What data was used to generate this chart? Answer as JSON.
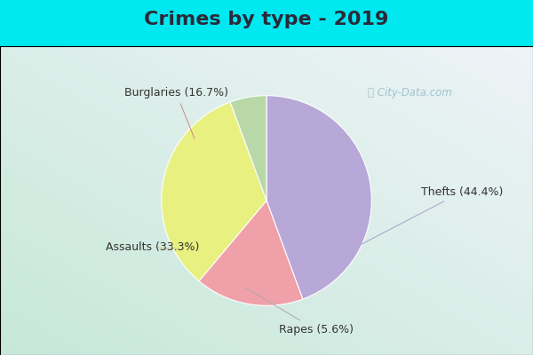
{
  "title": "Crimes by type - 2019",
  "slices": [
    {
      "label": "Thefts (44.4%)",
      "value": 44.4,
      "color": "#b8a8d8"
    },
    {
      "label": "Burglaries (16.7%)",
      "value": 16.7,
      "color": "#f0a0a8"
    },
    {
      "label": "Assaults (33.3%)",
      "value": 33.3,
      "color": "#e8f080"
    },
    {
      "label": "Rapes (5.6%)",
      "value": 5.6,
      "color": "#b8d8a8"
    }
  ],
  "bg_cyan": "#00e8f0",
  "bg_main": "#c8e8d8",
  "title_fontsize": 16,
  "label_fontsize": 9,
  "watermark": "ⓘ City-Data.com",
  "title_color": "#2a2a3a",
  "label_color": "#333333",
  "watermark_color": "#90bcc8"
}
